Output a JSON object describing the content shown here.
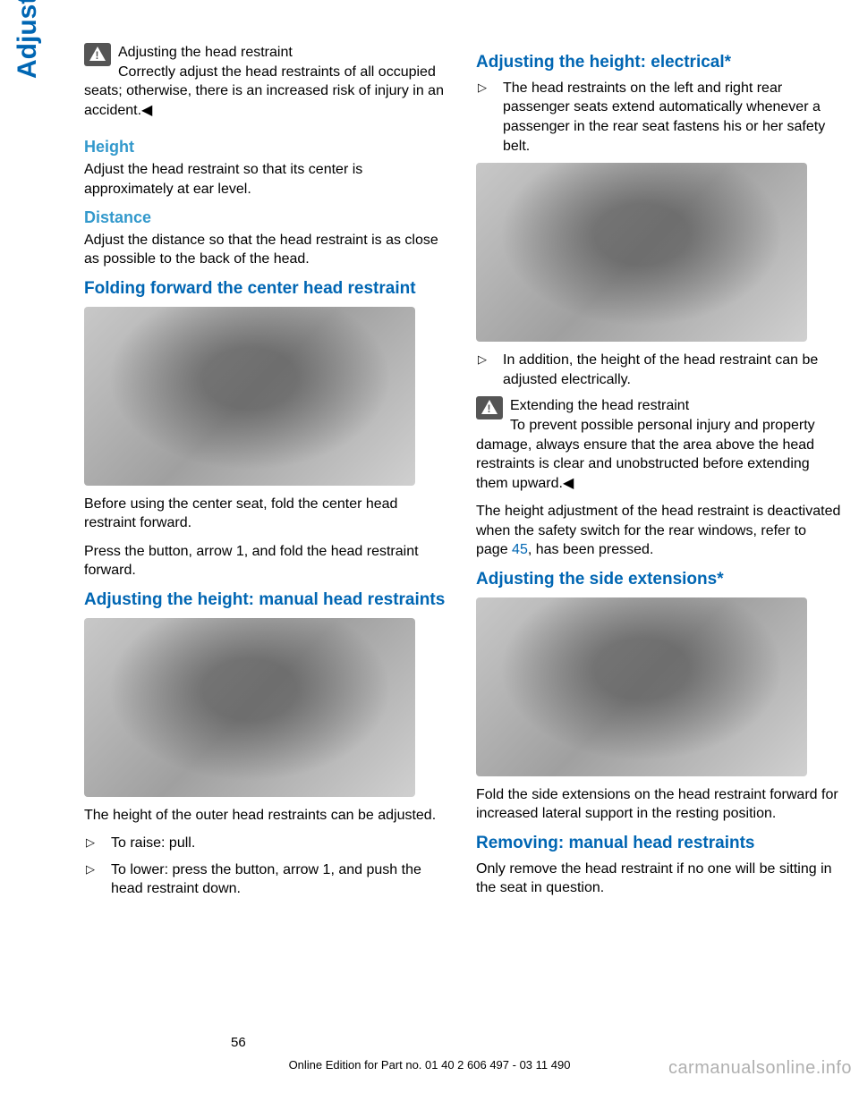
{
  "side_label": "Adjusting",
  "left": {
    "warn1_title": "Adjusting the head restraint",
    "warn1_body": "Correctly adjust the head restraints of all occupied seats; otherwise, there is an increased risk of injury in an accident.◀",
    "height_h": "Height",
    "height_p": "Adjust the head restraint so that its center is approximately at ear level.",
    "distance_h": "Distance",
    "distance_p": "Adjust the distance so that the head restraint is as close as possible to the back of the head.",
    "fold_h": "Folding forward the center head restraint",
    "fold_p1": "Before using the center seat, fold the center head restraint forward.",
    "fold_p2": "Press the button, arrow 1, and fold the head restraint forward.",
    "manual_h": "Adjusting the height: manual head restraints",
    "manual_p": "The height of the outer head restraints can be adjusted.",
    "manual_b1": "To raise: pull.",
    "manual_b2": "To lower: press the button, arrow 1, and push the head restraint down."
  },
  "right": {
    "elec_h": "Adjusting the height: electrical*",
    "elec_b1": "The head restraints on the left and right rear passenger seats extend automatically whenever a passenger in the rear seat fastens his or her safety belt.",
    "elec_b2": "In addition, the height of the head restraint can be adjusted electrically.",
    "warn2_title": "Extending the head restraint",
    "warn2_body": "To prevent possible personal injury and property damage, always ensure that the area above the head restraints is clear and unobstructed before extending them upward.◀",
    "deact_p1": "The height adjustment of the head restraint is deactivated when the safety switch for the rear windows, refer to page ",
    "deact_link": "45",
    "deact_p2": ", has been pressed.",
    "side_h": "Adjusting the side extensions*",
    "side_p": "Fold the side extensions on the head restraint forward for increased lateral support in the resting position.",
    "remove_h": "Removing: manual head restraints",
    "remove_p": "Only remove the head restraint if no one will be sitting in the seat in question."
  },
  "page_num": "56",
  "footer": "Online Edition for Part no. 01 40 2 606 497 - 03 11 490",
  "watermark": "carmanualsonline.info"
}
